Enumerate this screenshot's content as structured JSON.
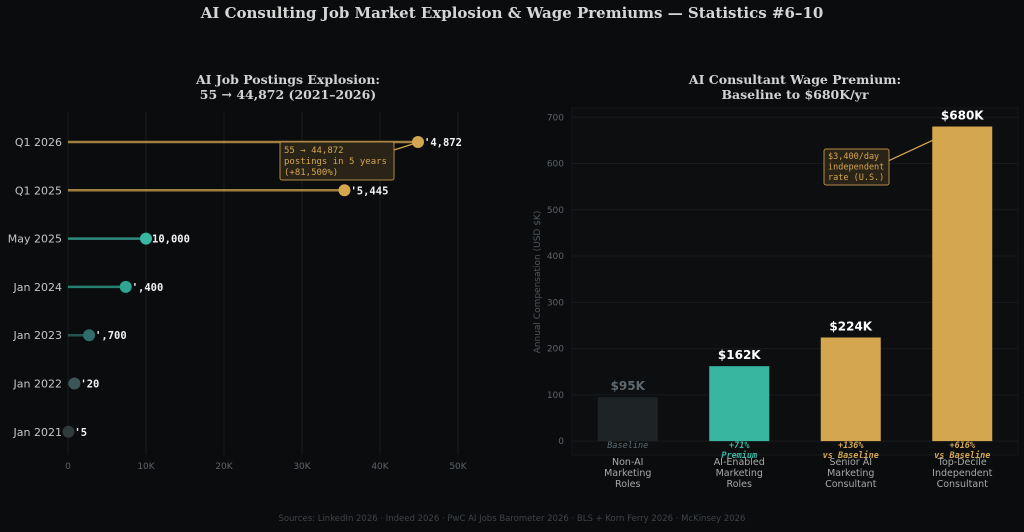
{
  "title": "AI Consulting Job Market Explosion & Wage Premiums — Statistics #6–10",
  "footer": "Sources: LinkedIn 2026 · Indeed 2026 · PwC AI Jobs Barometer 2026 · BLS + Korn Ferry 2026 · McKinsey 2026",
  "colors": {
    "gold": "#d4a650",
    "teal": "#38b6a0",
    "baseline": "#1e2326",
    "background": "#0b0c0e"
  },
  "chart_data": [
    {
      "type": "lollipop",
      "orientation": "horizontal",
      "title": "AI Job Postings Explosion:",
      "subtitle": "55 → 44,872 (2021–2026)",
      "xlim": [
        0,
        50000
      ],
      "xticks": [
        "0",
        "10K",
        "20K",
        "30K",
        "40K",
        "50K"
      ],
      "xtick_values": [
        0,
        10000,
        20000,
        30000,
        40000,
        50000
      ],
      "grid": true,
      "categories": [
        "Q1 2026",
        "Q1 2025",
        "May 2025",
        "Jan 2024",
        "Jan 2023",
        "Jan 2022",
        "Jan 2021"
      ],
      "values": [
        44872,
        35445,
        10000,
        7400,
        2700,
        820,
        55
      ],
      "value_labels": [
        "'4,872",
        "'5,445",
        "1̄0,000",
        "',400",
        "',700",
        "'20",
        "'5"
      ],
      "point_colors": [
        "#d4a650",
        "#d4a650",
        "#38b6a0",
        "#2fa591",
        "#2e6d6a",
        "#3c5558",
        "#2f3a3b"
      ],
      "annotation": {
        "text": [
          "55 → 44,872",
          "postings in 5 years",
          "(+81,500%)"
        ],
        "target": "Q1 2026"
      }
    },
    {
      "type": "bar",
      "title": "AI Consultant Wage Premium:",
      "subtitle": "Baseline to $680K/yr",
      "ylabel": "Annual Compensation (USD $K)",
      "ylim": [
        -30,
        720
      ],
      "yticks": [
        0,
        100,
        200,
        300,
        400,
        500,
        600,
        700
      ],
      "grid": true,
      "categories": [
        [
          "Non-AI",
          "Marketing",
          "Roles"
        ],
        [
          "AI-Enabled",
          "Marketing",
          "Roles"
        ],
        [
          "Senior AI",
          "Marketing",
          "Consultant"
        ],
        [
          "Top-Decile",
          "Independent",
          "Consultant"
        ]
      ],
      "values": [
        95,
        162,
        224,
        680
      ],
      "value_labels": [
        "$95K",
        "$162K",
        "$224K",
        "$680K"
      ],
      "premium_labels": [
        [
          "Baseline"
        ],
        [
          "+71%",
          "Premium"
        ],
        [
          "+136%",
          "vs Baseline"
        ],
        [
          "+616%",
          "vs Baseline"
        ]
      ],
      "bar_colors": [
        "#1e2326",
        "#38b6a0",
        "#d4a650",
        "#d4a650"
      ],
      "label_colors": [
        "#5c6970",
        "#ffffff",
        "#ffffff",
        "#ffffff"
      ],
      "premium_colors": [
        "#5b6b73",
        "#38b6a0",
        "#d4a650",
        "#d4a650"
      ],
      "annotation": {
        "text": [
          "$3,400/day",
          "independent",
          "rate (U.S.)"
        ],
        "target": "$680K"
      }
    }
  ]
}
